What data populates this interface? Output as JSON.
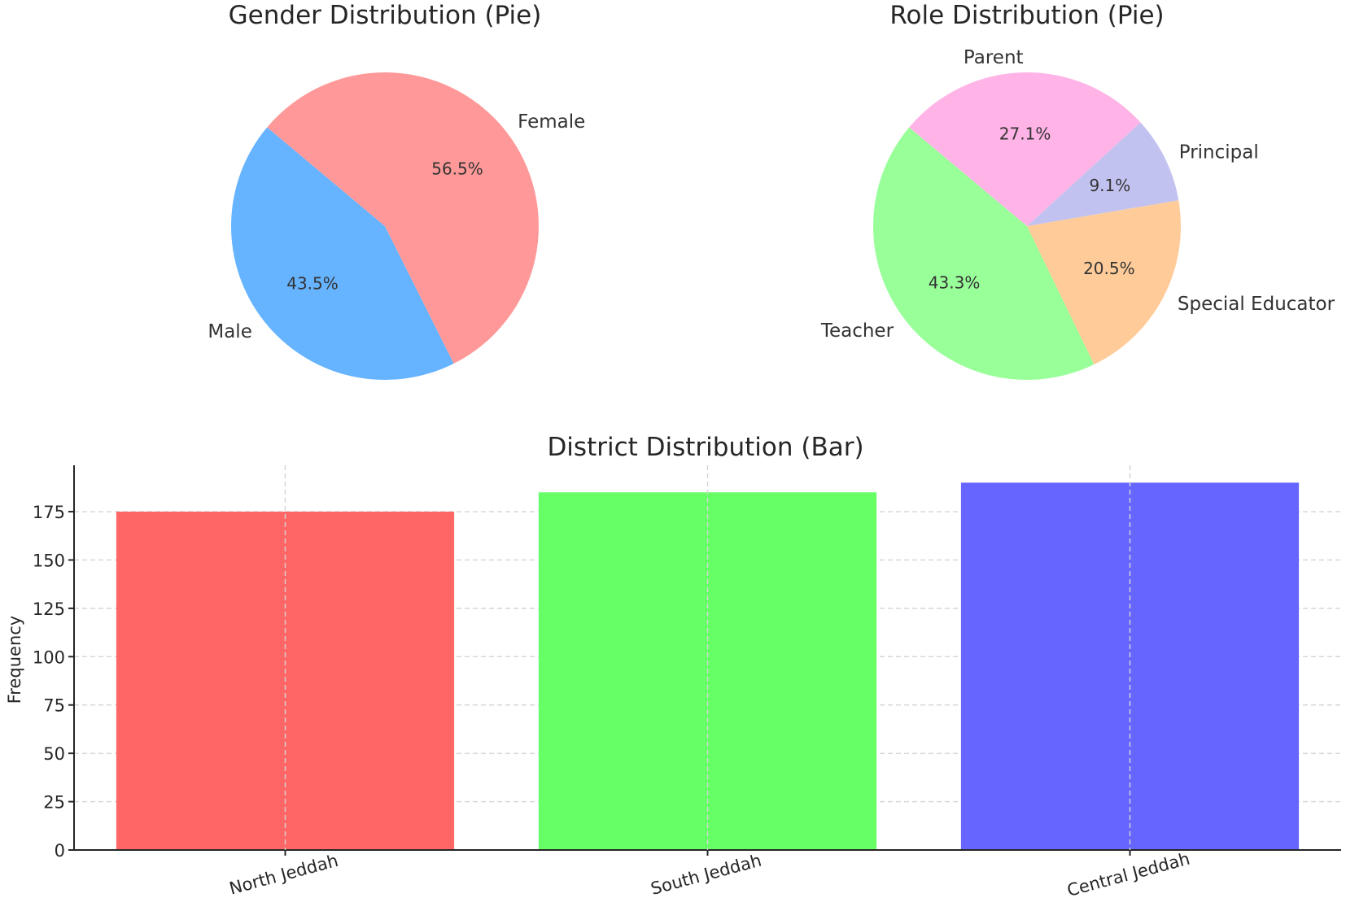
{
  "chart_data": [
    {
      "type": "pie",
      "title": "Gender Distribution (Pie)",
      "labels": [
        "Male",
        "Female"
      ],
      "values": [
        43.5,
        56.5
      ],
      "percent_labels": [
        "43.5%",
        "56.5%"
      ],
      "colors": [
        "#66b3ff",
        "#ff9999"
      ],
      "start_angle_deg": 140,
      "direction": "counterclockwise"
    },
    {
      "type": "pie",
      "title": "Role Distribution (Pie)",
      "labels": [
        "Teacher",
        "Special Educator",
        "Principal",
        "Parent"
      ],
      "values": [
        43.3,
        20.5,
        9.1,
        27.1
      ],
      "percent_labels": [
        "43.3%",
        "20.5%",
        "9.1%",
        "27.1%"
      ],
      "colors": [
        "#99ff99",
        "#ffcc99",
        "#c2c2f0",
        "#ffb3e6"
      ],
      "start_angle_deg": 140,
      "direction": "counterclockwise"
    },
    {
      "type": "bar",
      "title": "District Distribution (Bar)",
      "categories": [
        "North Jeddah",
        "South Jeddah",
        "Central Jeddah"
      ],
      "values": [
        175,
        185,
        190
      ],
      "colors": [
        "#ff6666",
        "#66ff66",
        "#6666ff"
      ],
      "xlabel": "",
      "ylabel": "Frequency",
      "ylim": [
        0,
        199
      ],
      "yticks": [
        0,
        25,
        50,
        75,
        100,
        125,
        150,
        175
      ],
      "grid": true,
      "xtick_rotation_deg": 15
    }
  ]
}
